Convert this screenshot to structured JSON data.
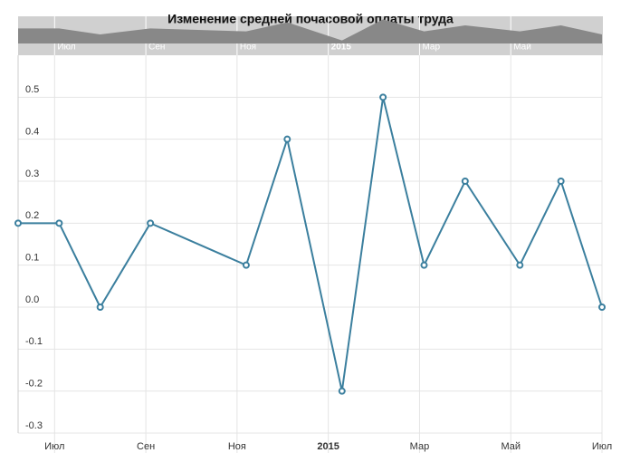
{
  "chart_data": {
    "type": "line",
    "title": "Изменение средней почасовой оплаты труда",
    "x": [
      6.2,
      7.1,
      8,
      9.1,
      11.2,
      12.1,
      13.3,
      14.2,
      15.1,
      16,
      17.2,
      18.1,
      19
    ],
    "series": [
      {
        "color": "#3b7f9e",
        "values": [
          0.2,
          0.2,
          0,
          0.2,
          0.1,
          0.4,
          -0.2,
          0.5,
          0.1,
          0.3,
          0.1,
          0.3,
          0
        ]
      }
    ],
    "xlim": [
      6.2,
      19
    ],
    "xticks": [
      {
        "value": 7,
        "label": "Июл"
      },
      {
        "value": 9,
        "label": "Сен"
      },
      {
        "value": 11,
        "label": "Ноя"
      },
      {
        "value": 13,
        "label": "2015"
      },
      {
        "value": 15,
        "label": "Мар"
      },
      {
        "value": 17,
        "label": "Май"
      },
      {
        "value": 19,
        "label": "Июл"
      }
    ],
    "ylim": [
      -0.3,
      0.6
    ],
    "yticks": [
      -0.3,
      -0.2,
      -0.1,
      {
        "value": 0,
        "label": "0.0"
      },
      0.1,
      0.2,
      0.3,
      0.4,
      0.5
    ],
    "grid": true
  }
}
